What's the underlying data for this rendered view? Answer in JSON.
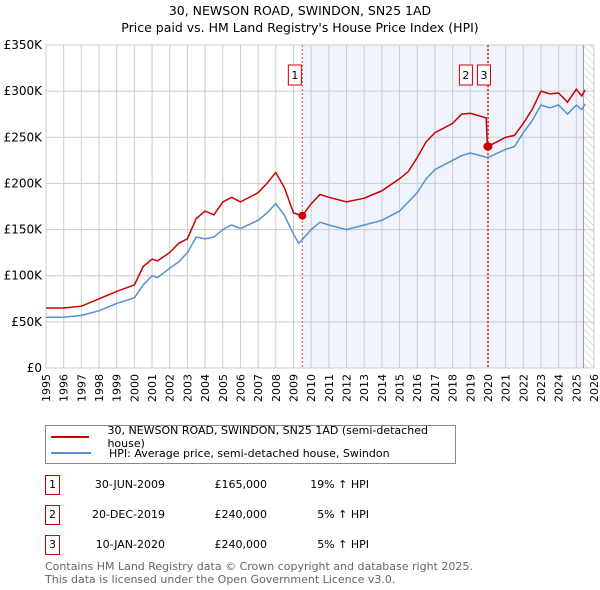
{
  "title": "30, NEWSON ROAD, SWINDON, SN25 1AD",
  "subtitle": "Price paid vs. HM Land Registry's House Price Index (HPI)",
  "chart_data": {
    "type": "line",
    "title": "30, NEWSON ROAD, SWINDON, SN25 1AD — Price paid vs. HM Land Registry's House Price Index (HPI)",
    "xlim": [
      1995,
      2026
    ],
    "ylim": [
      0,
      350000
    ],
    "x_ticks": [
      "1995",
      "1996",
      "1997",
      "1998",
      "1999",
      "2000",
      "2001",
      "2002",
      "2003",
      "2004",
      "2005",
      "2006",
      "2007",
      "2008",
      "2009",
      "2010",
      "2011",
      "2012",
      "2013",
      "2014",
      "2015",
      "2016",
      "2017",
      "2018",
      "2019",
      "2020",
      "2021",
      "2022",
      "2023",
      "2024",
      "2025",
      "2026"
    ],
    "y_ticks": [
      {
        "v": 0,
        "label": "£0"
      },
      {
        "v": 50000,
        "label": "£50K"
      },
      {
        "v": 100000,
        "label": "£100K"
      },
      {
        "v": 150000,
        "label": "£150K"
      },
      {
        "v": 200000,
        "label": "£200K"
      },
      {
        "v": 250000,
        "label": "£250K"
      },
      {
        "v": 300000,
        "label": "£300K"
      },
      {
        "v": 350000,
        "label": "£350K"
      }
    ],
    "grid": true,
    "shaded_from": 2009.5,
    "hatched_from": 2025.4,
    "series": [
      {
        "name": "30, NEWSON ROAD, SWINDON, SN25 1AD (semi-detached house)",
        "color": "#cc0000",
        "x": [
          1995,
          1996,
          1997,
          1998,
          1999,
          2000,
          2000.5,
          2001,
          2001.3,
          2002,
          2002.5,
          2003,
          2003.5,
          2004,
          2004.5,
          2005,
          2005.5,
          2006,
          2007,
          2007.5,
          2008,
          2008.5,
          2009,
          2009.5,
          2010,
          2010.5,
          2011,
          2012,
          2013,
          2013.5,
          2014,
          2015,
          2015.5,
          2016,
          2016.5,
          2017,
          2018,
          2018.5,
          2019,
          2019.9,
          2019.97,
          2020.5,
          2021,
          2021.5,
          2022,
          2022.5,
          2023,
          2023.5,
          2024,
          2024.5,
          2025,
          2025.3,
          2025.5
        ],
        "y": [
          65000,
          65000,
          67000,
          75000,
          83000,
          90000,
          110000,
          118000,
          116000,
          125000,
          135000,
          140000,
          162000,
          170000,
          166000,
          180000,
          185000,
          180000,
          190000,
          200000,
          212000,
          195000,
          168000,
          165000,
          178000,
          188000,
          185000,
          180000,
          184000,
          188000,
          192000,
          205000,
          213000,
          228000,
          245000,
          255000,
          265000,
          275000,
          276000,
          271000,
          240000,
          245000,
          250000,
          252000,
          265000,
          280000,
          300000,
          297000,
          298000,
          288000,
          302000,
          295000,
          301000
        ]
      },
      {
        "name": "HPI: Average price, semi-detached house, Swindon",
        "color": "#5b8fd0",
        "x": [
          1995,
          1996,
          1997,
          1998,
          1999,
          2000,
          2000.5,
          2001,
          2001.3,
          2002,
          2002.5,
          2003,
          2003.5,
          2004,
          2004.5,
          2005,
          2005.5,
          2006,
          2007,
          2007.5,
          2008,
          2008.5,
          2009,
          2009.3,
          2010,
          2010.5,
          2011,
          2012,
          2013,
          2014,
          2015,
          2015.5,
          2016,
          2016.5,
          2017,
          2018,
          2018.5,
          2019,
          2020,
          2021,
          2021.5,
          2022,
          2022.5,
          2023,
          2023.5,
          2024,
          2024.5,
          2025,
          2025.3,
          2025.5
        ],
        "y": [
          55000,
          55000,
          57000,
          62000,
          70000,
          76000,
          90000,
          100000,
          98000,
          108000,
          115000,
          125000,
          142000,
          140000,
          142000,
          150000,
          155000,
          151000,
          160000,
          168000,
          178000,
          165000,
          145000,
          135000,
          150000,
          158000,
          155000,
          150000,
          155000,
          160000,
          170000,
          180000,
          190000,
          205000,
          215000,
          225000,
          230000,
          233000,
          228000,
          237000,
          240000,
          255000,
          268000,
          285000,
          282000,
          285000,
          275000,
          285000,
          280000,
          286000
        ]
      }
    ],
    "sales": [
      {
        "label": "1",
        "date": "30-JUN-2009",
        "x": 2009.5,
        "price": "£165,000",
        "value": 165000,
        "hpi": "19% ↑ HPI"
      },
      {
        "label": "2",
        "date": "20-DEC-2019",
        "x": 2019.97,
        "price": "£240,000",
        "value": 240000,
        "hpi": "5% ↑ HPI"
      },
      {
        "label": "3",
        "date": "10-JAN-2020",
        "x": 2020.03,
        "price": "£240,000",
        "value": 240000,
        "hpi": "5% ↑ HPI"
      }
    ]
  },
  "footer": [
    "Contains HM Land Registry data © Crown copyright and database right 2025.",
    "This data is licensed under the Open Government Licence v3.0."
  ]
}
